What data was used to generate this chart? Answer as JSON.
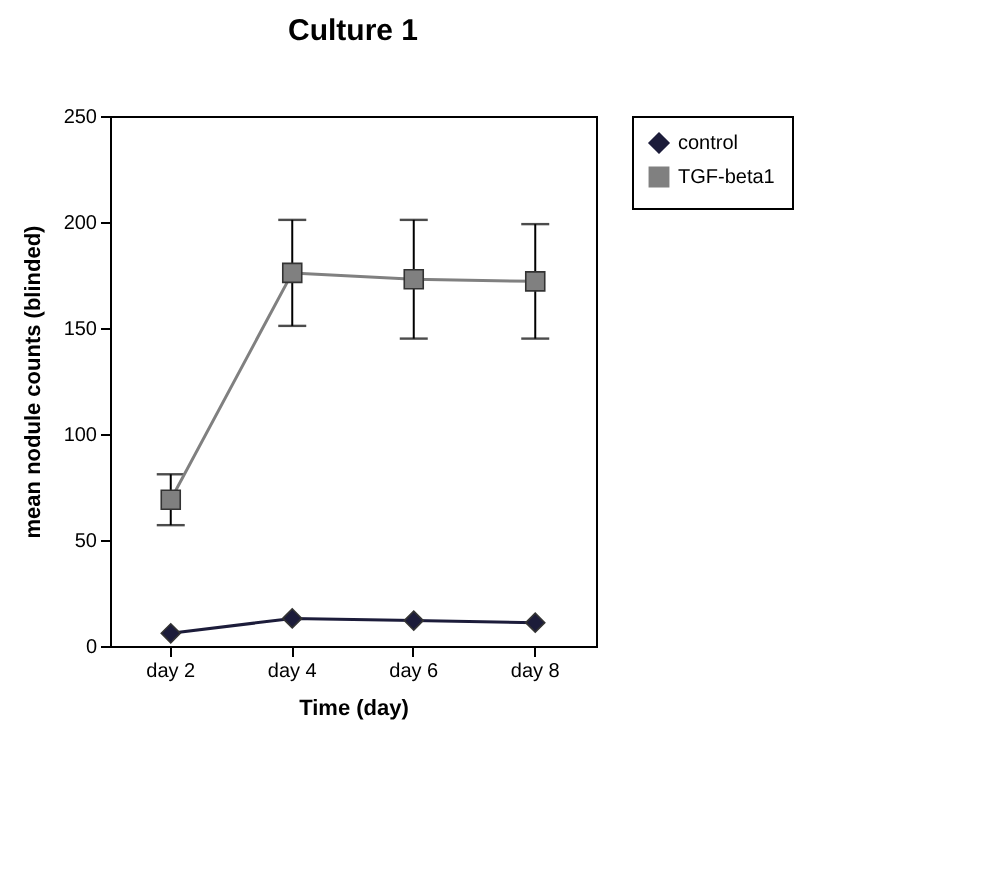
{
  "chart_data": {
    "type": "line",
    "title": "Culture 1",
    "xlabel": "Time (day)",
    "ylabel": "mean nodule counts (blinded)",
    "categories": [
      "day 2",
      "day 4",
      "day 6",
      "day 8"
    ],
    "series": [
      {
        "name": "control",
        "color": "#1c1c3a",
        "marker": "diamond",
        "values": [
          6,
          13,
          12,
          11
        ]
      },
      {
        "name": "TGF-beta1",
        "color": "#808080",
        "marker": "square",
        "values": [
          69,
          176,
          173,
          172
        ],
        "errors": [
          12,
          25,
          28,
          27
        ]
      }
    ],
    "ylim": [
      0,
      250
    ],
    "yticks": [
      0,
      50,
      100,
      150,
      200,
      250
    ],
    "grid": false,
    "legend": "right"
  }
}
